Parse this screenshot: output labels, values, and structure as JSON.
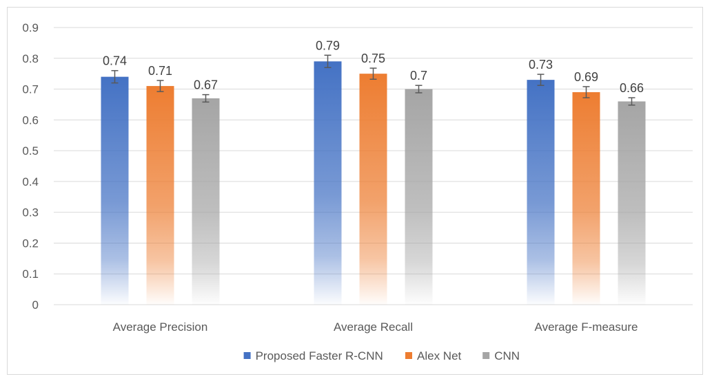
{
  "chart_data": {
    "type": "bar",
    "title": "",
    "xlabel": "",
    "ylabel": "",
    "categories": [
      "Average Precision",
      "Average Recall",
      "Average F-measure"
    ],
    "series": [
      {
        "name": "Proposed Faster R-CNN",
        "values": [
          0.74,
          0.79,
          0.73
        ],
        "color": "#4472c4",
        "errors": [
          0.02,
          0.02,
          0.018
        ]
      },
      {
        "name": "Alex Net",
        "values": [
          0.71,
          0.75,
          0.69
        ],
        "color": "#ed7d31",
        "errors": [
          0.018,
          0.018,
          0.018
        ]
      },
      {
        "name": "CNN",
        "values": [
          0.67,
          0.7,
          0.66
        ],
        "color": "#a5a5a5",
        "errors": [
          0.012,
          0.012,
          0.012
        ]
      }
    ],
    "data_labels": [
      [
        "0.74",
        "0.79",
        "0.73"
      ],
      [
        "0.71",
        "0.75",
        "0.69"
      ],
      [
        "0.67",
        "0.7",
        "0.66"
      ]
    ],
    "ylim": [
      0,
      0.9
    ],
    "yticks": [
      "0",
      "0.1",
      "0.2",
      "0.3",
      "0.4",
      "0.5",
      "0.6",
      "0.7",
      "0.8",
      "0.9"
    ],
    "grid": true,
    "legend_position": "bottom",
    "error_bar_color": "#595959",
    "gridline_color": "#d9d9d9"
  }
}
